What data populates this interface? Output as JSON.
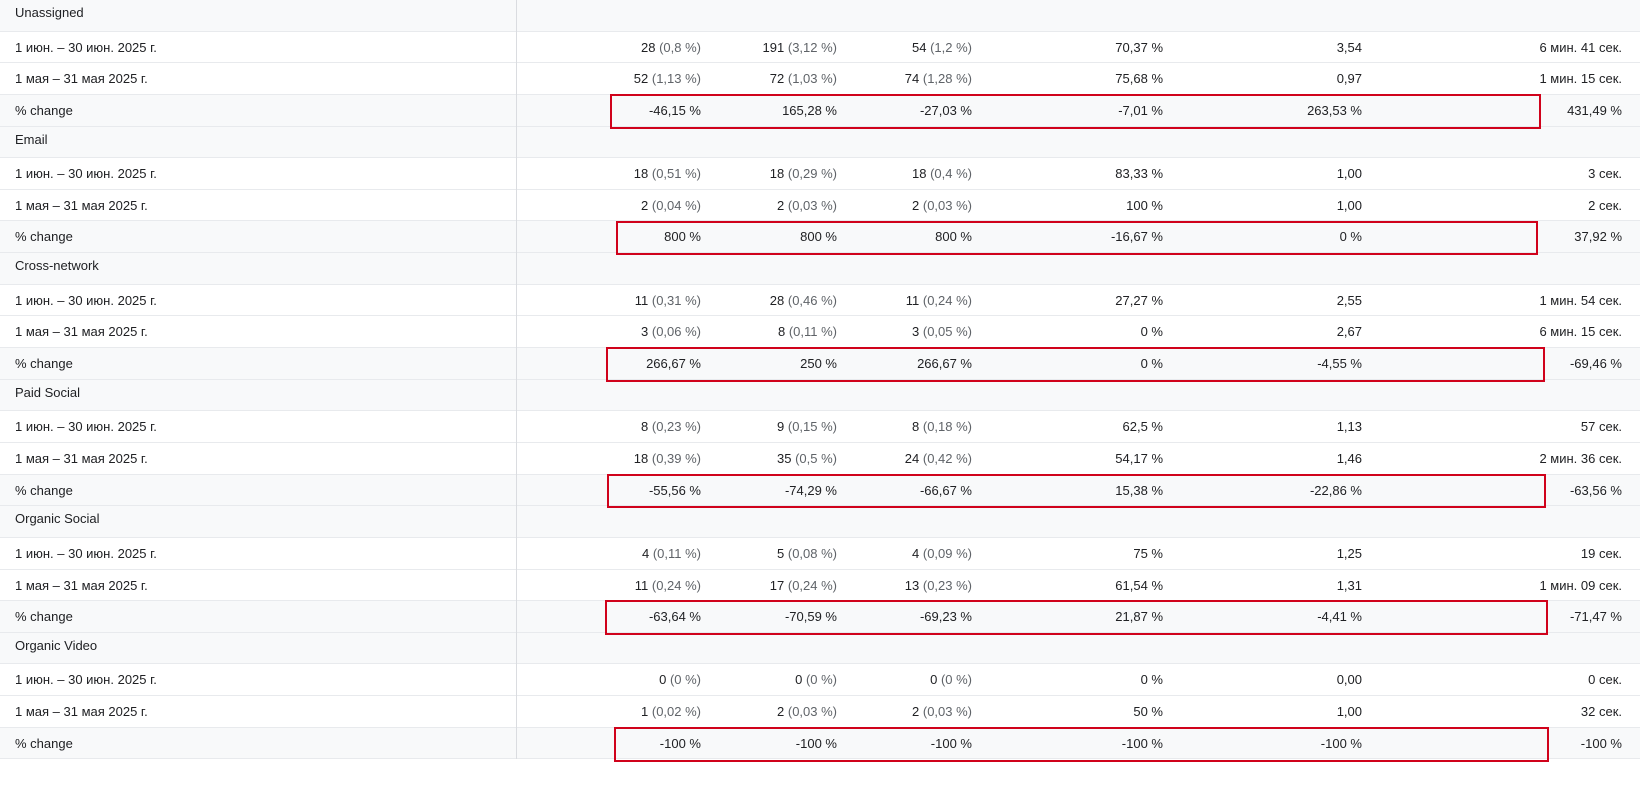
{
  "groups": [
    {
      "name": "Unassigned",
      "rows": [
        {
          "label": "1 июн. – 30 июн. 2025 г.",
          "cells": [
            {
              "v": "28",
              "p": "(0,8 %)"
            },
            {
              "v": "191",
              "p": "(3,12 %)"
            },
            {
              "v": "54",
              "p": "(1,2 %)"
            },
            {
              "v": "70,37 %"
            },
            {
              "v": "3,54"
            },
            {
              "v": "6 мин. 41 сек."
            }
          ]
        },
        {
          "label": "1 мая – 31 мая 2025 г.",
          "cells": [
            {
              "v": "52",
              "p": "(1,13 %)"
            },
            {
              "v": "72",
              "p": "(1,03 %)"
            },
            {
              "v": "74",
              "p": "(1,28 %)"
            },
            {
              "v": "75,68 %"
            },
            {
              "v": "0,97"
            },
            {
              "v": "1 мин. 15 сек."
            }
          ]
        },
        {
          "label": "% change",
          "cells": [
            {
              "v": "-46,15 %"
            },
            {
              "v": "165,28 %"
            },
            {
              "v": "-27,03 %"
            },
            {
              "v": "-7,01 %"
            },
            {
              "v": "263,53 %"
            },
            {
              "v": "431,49 %"
            }
          ]
        }
      ]
    },
    {
      "name": "Email",
      "rows": [
        {
          "label": "1 июн. – 30 июн. 2025 г.",
          "cells": [
            {
              "v": "18",
              "p": "(0,51 %)"
            },
            {
              "v": "18",
              "p": "(0,29 %)"
            },
            {
              "v": "18",
              "p": "(0,4 %)"
            },
            {
              "v": "83,33 %"
            },
            {
              "v": "1,00"
            },
            {
              "v": "3 сек."
            }
          ]
        },
        {
          "label": "1 мая – 31 мая 2025 г.",
          "cells": [
            {
              "v": "2",
              "p": "(0,04 %)"
            },
            {
              "v": "2",
              "p": "(0,03 %)"
            },
            {
              "v": "2",
              "p": "(0,03 %)"
            },
            {
              "v": "100 %"
            },
            {
              "v": "1,00"
            },
            {
              "v": "2 сек."
            }
          ]
        },
        {
          "label": "% change",
          "cells": [
            {
              "v": "800 %"
            },
            {
              "v": "800 %"
            },
            {
              "v": "800 %"
            },
            {
              "v": "-16,67 %"
            },
            {
              "v": "0 %"
            },
            {
              "v": "37,92 %"
            }
          ]
        }
      ]
    },
    {
      "name": "Cross-network",
      "rows": [
        {
          "label": "1 июн. – 30 июн. 2025 г.",
          "cells": [
            {
              "v": "11",
              "p": "(0,31 %)"
            },
            {
              "v": "28",
              "p": "(0,46 %)"
            },
            {
              "v": "11",
              "p": "(0,24 %)"
            },
            {
              "v": "27,27 %"
            },
            {
              "v": "2,55"
            },
            {
              "v": "1 мин. 54 сек."
            }
          ]
        },
        {
          "label": "1 мая – 31 мая 2025 г.",
          "cells": [
            {
              "v": "3",
              "p": "(0,06 %)"
            },
            {
              "v": "8",
              "p": "(0,11 %)"
            },
            {
              "v": "3",
              "p": "(0,05 %)"
            },
            {
              "v": "0 %"
            },
            {
              "v": "2,67"
            },
            {
              "v": "6 мин. 15 сек."
            }
          ]
        },
        {
          "label": "% change",
          "cells": [
            {
              "v": "266,67 %"
            },
            {
              "v": "250 %"
            },
            {
              "v": "266,67 %"
            },
            {
              "v": "0 %"
            },
            {
              "v": "-4,55 %"
            },
            {
              "v": "-69,46 %"
            }
          ]
        }
      ]
    },
    {
      "name": "Paid Social",
      "rows": [
        {
          "label": "1 июн. – 30 июн. 2025 г.",
          "cells": [
            {
              "v": "8",
              "p": "(0,23 %)"
            },
            {
              "v": "9",
              "p": "(0,15 %)"
            },
            {
              "v": "8",
              "p": "(0,18 %)"
            },
            {
              "v": "62,5 %"
            },
            {
              "v": "1,13"
            },
            {
              "v": "57 сек."
            }
          ]
        },
        {
          "label": "1 мая – 31 мая 2025 г.",
          "cells": [
            {
              "v": "18",
              "p": "(0,39 %)"
            },
            {
              "v": "35",
              "p": "(0,5 %)"
            },
            {
              "v": "24",
              "p": "(0,42 %)"
            },
            {
              "v": "54,17 %"
            },
            {
              "v": "1,46"
            },
            {
              "v": "2 мин. 36 сек."
            }
          ]
        },
        {
          "label": "% change",
          "cells": [
            {
              "v": "-55,56 %"
            },
            {
              "v": "-74,29 %"
            },
            {
              "v": "-66,67 %"
            },
            {
              "v": "15,38 %"
            },
            {
              "v": "-22,86 %"
            },
            {
              "v": "-63,56 %"
            }
          ]
        }
      ]
    },
    {
      "name": "Organic Social",
      "rows": [
        {
          "label": "1 июн. – 30 июн. 2025 г.",
          "cells": [
            {
              "v": "4",
              "p": "(0,11 %)"
            },
            {
              "v": "5",
              "p": "(0,08 %)"
            },
            {
              "v": "4",
              "p": "(0,09 %)"
            },
            {
              "v": "75 %"
            },
            {
              "v": "1,25"
            },
            {
              "v": "19 сек."
            }
          ]
        },
        {
          "label": "1 мая – 31 мая 2025 г.",
          "cells": [
            {
              "v": "11",
              "p": "(0,24 %)"
            },
            {
              "v": "17",
              "p": "(0,24 %)"
            },
            {
              "v": "13",
              "p": "(0,23 %)"
            },
            {
              "v": "61,54 %"
            },
            {
              "v": "1,31"
            },
            {
              "v": "1 мин. 09 сек."
            }
          ]
        },
        {
          "label": "% change",
          "cells": [
            {
              "v": "-63,64 %"
            },
            {
              "v": "-70,59 %"
            },
            {
              "v": "-69,23 %"
            },
            {
              "v": "21,87 %"
            },
            {
              "v": "-4,41 %"
            },
            {
              "v": "-71,47 %"
            }
          ]
        }
      ]
    },
    {
      "name": "Organic Video",
      "rows": [
        {
          "label": "1 июн. – 30 июн. 2025 г.",
          "cells": [
            {
              "v": "0",
              "p": "(0 %)"
            },
            {
              "v": "0",
              "p": "(0 %)"
            },
            {
              "v": "0",
              "p": "(0 %)"
            },
            {
              "v": "0 %"
            },
            {
              "v": "0,00"
            },
            {
              "v": "0 сек."
            }
          ]
        },
        {
          "label": "1 мая – 31 мая 2025 г.",
          "cells": [
            {
              "v": "1",
              "p": "(0,02 %)"
            },
            {
              "v": "2",
              "p": "(0,03 %)"
            },
            {
              "v": "2",
              "p": "(0,03 %)"
            },
            {
              "v": "50 %"
            },
            {
              "v": "1,00"
            },
            {
              "v": "32 сек."
            }
          ]
        },
        {
          "label": "% change",
          "cells": [
            {
              "v": "-100 %"
            },
            {
              "v": "-100 %"
            },
            {
              "v": "-100 %"
            },
            {
              "v": "-100 %"
            },
            {
              "v": "-100 %"
            },
            {
              "v": "-100 %"
            }
          ]
        }
      ]
    }
  ],
  "colors": {
    "highlight": "#d0021b",
    "text": "#202124",
    "muted": "#5f6368",
    "row_alt": "#f8f9fa",
    "border": "#e8eaed"
  }
}
